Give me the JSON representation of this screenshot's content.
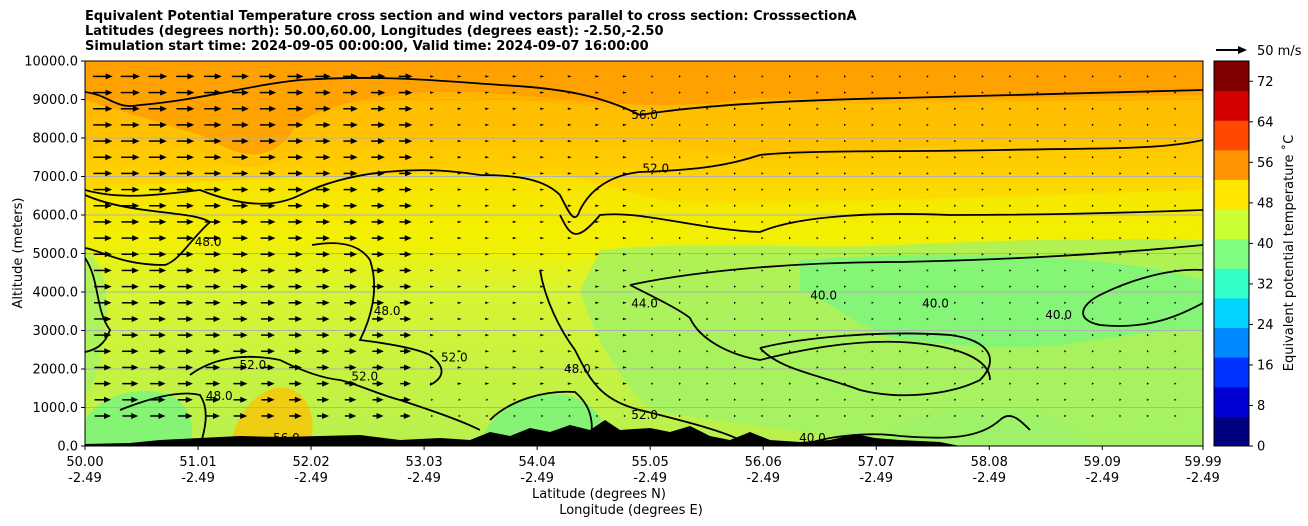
{
  "chart_data": {
    "type": "heatmap",
    "title_lines": [
      "Equivalent Potential Temperature cross section and wind vectors parallel to cross section: CrosssectionA",
      "Latitudes (degrees north): 50.00,60.00, Longitudes (degrees east): -2.50,-2.50",
      "Simulation start time: 2024-09-05 00:00:00, Valid time: 2024-09-07 16:00:00"
    ],
    "xlabel_lines": [
      "Latitude (degrees N)",
      "Longitude (degrees E)"
    ],
    "ylabel": "Altitude (meters)",
    "x_ticks": [
      {
        "lat": "50.00",
        "lon": "-2.49",
        "value": 50.0
      },
      {
        "lat": "51.01",
        "lon": "-2.49",
        "value": 51.01
      },
      {
        "lat": "52.02",
        "lon": "-2.49",
        "value": 52.02
      },
      {
        "lat": "53.03",
        "lon": "-2.49",
        "value": 53.03
      },
      {
        "lat": "54.04",
        "lon": "-2.49",
        "value": 54.04
      },
      {
        "lat": "55.05",
        "lon": "-2.49",
        "value": 55.05
      },
      {
        "lat": "56.06",
        "lon": "-2.49",
        "value": 56.06
      },
      {
        "lat": "57.07",
        "lon": "-2.49",
        "value": 57.07
      },
      {
        "lat": "58.08",
        "lon": "-2.49",
        "value": 58.08
      },
      {
        "lat": "59.09",
        "lon": "-2.49",
        "value": 59.09
      },
      {
        "lat": "59.99",
        "lon": "-2.49",
        "value": 59.99
      }
    ],
    "xlim": [
      50.0,
      59.99
    ],
    "y_ticks": [
      "0.0",
      "1000.0",
      "2000.0",
      "3000.0",
      "4000.0",
      "5000.0",
      "6000.0",
      "7000.0",
      "8000.0",
      "9000.0",
      "10000.0"
    ],
    "ylim": [
      0,
      10000
    ],
    "grid": "horizontal",
    "colorbar": {
      "label": "Equivalent potential temperature ˚C",
      "ticks": [
        "0",
        "8",
        "16",
        "24",
        "32",
        "40",
        "48",
        "56",
        "64",
        "72"
      ],
      "range": [
        0,
        76
      ],
      "colors": [
        "#00007f",
        "#0000d4",
        "#0033ff",
        "#0088ff",
        "#00d4ff",
        "#33ffc9",
        "#7fff7f",
        "#c9ff33",
        "#ffe500",
        "#ff9400",
        "#ff4800",
        "#d40000",
        "#7f0000"
      ]
    },
    "quiver_key": {
      "label": "50 m/s",
      "value": 50
    },
    "contour_levels": [
      40,
      44,
      48,
      52,
      56
    ],
    "contour_labels": [
      {
        "text": "56.0",
        "lat": 55.0,
        "alt": 8500
      },
      {
        "text": "52.0",
        "lat": 55.1,
        "alt": 7100
      },
      {
        "text": "48.0",
        "lat": 51.1,
        "alt": 5200
      },
      {
        "text": "48.0",
        "lat": 52.7,
        "alt": 3400
      },
      {
        "text": "44.0",
        "lat": 55.0,
        "alt": 3600
      },
      {
        "text": "40.0",
        "lat": 57.6,
        "alt": 3600
      },
      {
        "text": "40.0",
        "lat": 56.6,
        "alt": 3800
      },
      {
        "text": "40.0",
        "lat": 58.7,
        "alt": 3300
      },
      {
        "text": "52.0",
        "lat": 53.3,
        "alt": 2200
      },
      {
        "text": "48.0",
        "lat": 54.4,
        "alt": 1900
      },
      {
        "text": "52.0",
        "lat": 55.0,
        "alt": 700
      },
      {
        "text": "40.0",
        "lat": 56.5,
        "alt": 100
      },
      {
        "text": "52.0",
        "lat": 52.5,
        "alt": 1700
      },
      {
        "text": "48.0",
        "lat": 51.2,
        "alt": 1200
      },
      {
        "text": "52.0",
        "lat": 51.5,
        "alt": 2000
      },
      {
        "text": "56.0",
        "lat": 51.8,
        "alt": 100
      }
    ],
    "wind_vectors": "rows of arrows pointing right (southward-to-northward component), strongest west of 53.0N"
  }
}
